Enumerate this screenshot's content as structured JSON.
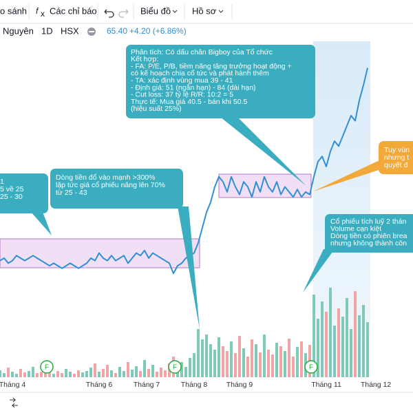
{
  "toolbar": {
    "compare": "o sánh",
    "indicators": "Các chỉ báo",
    "chart": "Biểu đồ",
    "profile": "Hồ sơ"
  },
  "header": {
    "name": "Nguyên",
    "interval": "1D",
    "exchange": "HSX",
    "price": "65.40",
    "change": "+4.20 (+6.86%)"
  },
  "chart_data": {
    "type": "line",
    "color": "#2f8fd6",
    "x": [
      0,
      1,
      2,
      3,
      4,
      5,
      6,
      7,
      8,
      9,
      10,
      11,
      12,
      13,
      14,
      15,
      16,
      17,
      18,
      19,
      20,
      21,
      22,
      23,
      24,
      25,
      26,
      27,
      28,
      29,
      30,
      31,
      32,
      33,
      34,
      35,
      36,
      37,
      38,
      39,
      40,
      41,
      42,
      43,
      44,
      45,
      46,
      47,
      48,
      49,
      50,
      51,
      52,
      53,
      54,
      55,
      56,
      57,
      58,
      59,
      60,
      61,
      62,
      63,
      64,
      65,
      66,
      67,
      68,
      69,
      70,
      71,
      72,
      73,
      74,
      75,
      76,
      77,
      78,
      79,
      80,
      81,
      82,
      83,
      84,
      85,
      86,
      87,
      88,
      89
    ],
    "values": [
      27.5,
      28,
      27,
      27.5,
      28.5,
      28,
      27.5,
      28,
      28.5,
      28,
      27.5,
      27,
      26.5,
      27,
      26.5,
      26,
      26.5,
      27,
      26.5,
      26,
      26.5,
      27,
      28,
      27.5,
      29,
      28,
      27.5,
      28.5,
      27.5,
      28,
      28.5,
      27,
      28,
      29,
      28.5,
      29.5,
      28,
      29,
      28.5,
      28,
      27.5,
      27,
      25,
      26.5,
      27,
      28,
      28.5,
      29,
      31,
      34,
      37,
      39,
      42,
      44,
      43,
      41,
      44,
      42,
      40.5,
      43,
      42,
      40,
      43,
      41,
      44,
      42,
      41,
      43,
      40.5,
      42,
      41,
      40,
      41.5,
      40,
      41,
      40.5,
      44,
      47,
      48,
      46,
      49,
      51,
      50,
      52,
      54,
      56,
      55,
      59,
      62,
      65.4
    ],
    "volume": [
      10,
      6,
      14,
      8,
      5,
      12,
      7,
      9,
      15,
      6,
      8,
      11,
      7,
      5,
      9,
      6,
      12,
      8,
      5,
      10,
      7,
      9,
      14,
      20,
      8,
      12,
      18,
      10,
      6,
      15,
      9,
      22,
      11,
      16,
      9,
      25,
      12,
      18,
      8,
      14,
      10,
      20,
      30,
      18,
      22,
      15,
      28,
      35,
      70,
      55,
      62,
      48,
      40,
      58,
      45,
      38,
      52,
      35,
      60,
      42,
      30,
      55,
      48,
      36,
      62,
      40,
      33,
      50,
      45,
      38,
      56,
      30,
      44,
      52,
      35,
      47,
      120,
      85,
      110,
      95,
      130,
      75,
      100,
      88,
      115,
      70,
      125,
      90,
      105,
      80
    ],
    "up_color": "#7fc9b7",
    "down_color": "#f2a3a3",
    "xlim": [
      0,
      100
    ],
    "ylim": [
      5,
      74
    ],
    "y2lim": [
      0,
      200
    ],
    "xticks": [
      {
        "value": 3,
        "label": "Tháng 4"
      },
      {
        "value": 24,
        "label": "Tháng 6"
      },
      {
        "value": 35.5,
        "label": "Tháng 7"
      },
      {
        "value": 47,
        "label": "Tháng 8"
      },
      {
        "value": 58,
        "label": "Tháng 9"
      },
      {
        "value": 79,
        "label": "Tháng 11"
      },
      {
        "value": 91,
        "label": "Tháng 12"
      }
    ],
    "markers": [
      "F",
      "F",
      "F"
    ],
    "annotations": [
      {
        "lines": [
          "Phân tích: Có dấu chân Bigboy của Tổ chức",
          "Kết hợp:",
          "- FA: P/E, P/B, tiềm năng tăng trưởng hoạt động +",
          "có kế hoạch chia cổ tức và phát hành thêm",
          "- TA: xác định vùng mua 39 - 41",
          "- Định giá: 51 (ngắn hạn) - 84 (dài hạn)",
          "- Cut loss: 37 tỷ lệ R/R: 10:2 = 5",
          "Thực tế: Mua giá 40.5 - bán khi 50.5",
          "(hiệu suất 25%)"
        ]
      },
      {
        "lines": [
          "1",
          "5 về 25",
          "25 - 30"
        ]
      },
      {
        "lines": [
          "Dòng tiền đổ vào mạnh >300%",
          "lập tức giá cổ phiếu nâng lên 70%",
          "từ 25 - 43"
        ]
      },
      {
        "lines": [
          "Tuy vùn",
          "nhưng t",
          "quyết đ"
        ]
      },
      {
        "lines": [
          "Cổ phiếu tích luỹ 2 thán",
          "Volume cạn kiệt",
          "Dòng tiền có phiên brea",
          "nhưng không thành côn"
        ]
      }
    ]
  }
}
